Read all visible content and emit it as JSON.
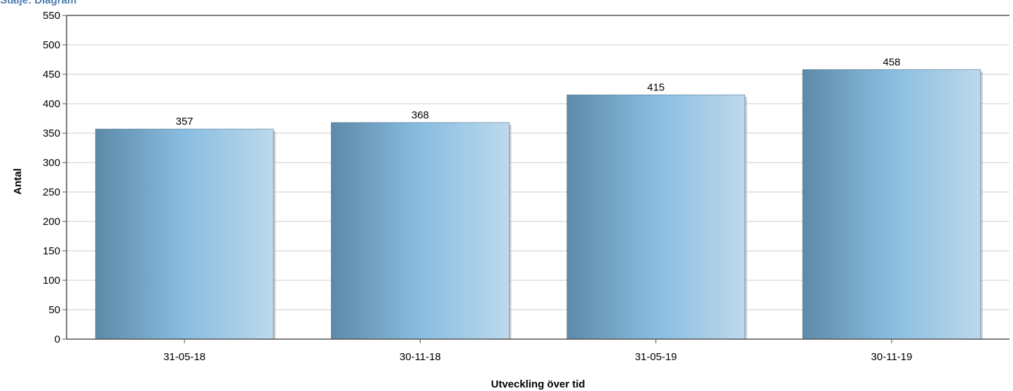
{
  "chart_data": {
    "type": "bar",
    "title": "Stalje: Diagram",
    "categories": [
      "31-05-18",
      "30-11-18",
      "31-05-19",
      "30-11-19"
    ],
    "values": [
      357,
      368,
      415,
      458
    ],
    "xlabel": "Utveckling över tid",
    "ylabel": "Antal",
    "ylim": [
      0,
      550
    ],
    "yticks": [
      0,
      50,
      100,
      150,
      200,
      250,
      300,
      350,
      400,
      450,
      500,
      550
    ],
    "grid": true,
    "legend": "none"
  },
  "colors": {
    "bar_dark": "#5d8aa8",
    "bar_mid": "#89bde0",
    "bar_light": "#bcd9ec",
    "grid": "#cccccc",
    "axis": "#555555",
    "title": "#4a7fb0"
  }
}
